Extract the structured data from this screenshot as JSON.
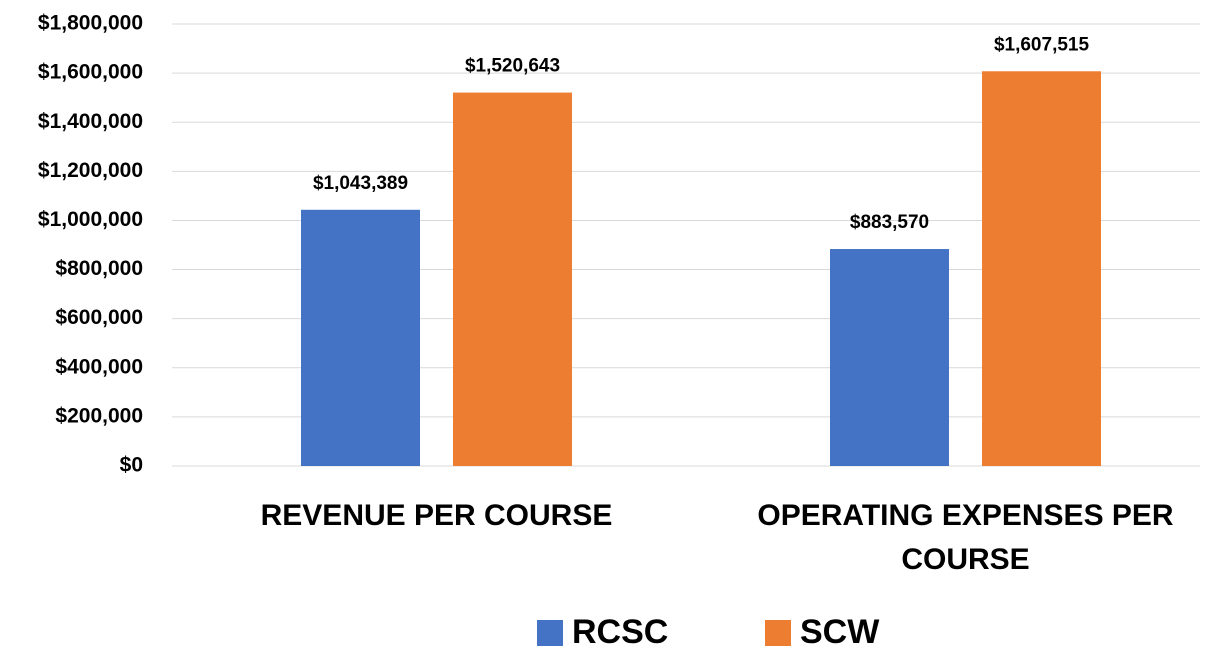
{
  "chart_data": {
    "type": "bar",
    "categories": [
      "REVENUE PER COURSE",
      "OPERATING EXPENSES PER COURSE"
    ],
    "series": [
      {
        "name": "RCSC",
        "color": "#4472c4",
        "values": [
          1043389,
          883570
        ],
        "value_labels": [
          "$1,043,389",
          "$883,570"
        ]
      },
      {
        "name": "SCW",
        "color": "#ed7d31",
        "values": [
          1520643,
          1607515
        ],
        "value_labels": [
          "$1,520,643",
          "$1,607,515"
        ]
      }
    ],
    "ylim": [
      0,
      1800000
    ],
    "yticks": [
      {
        "value": 0,
        "label": "$0"
      },
      {
        "value": 200000,
        "label": "$200,000"
      },
      {
        "value": 400000,
        "label": "$400,000"
      },
      {
        "value": 600000,
        "label": "$600,000"
      },
      {
        "value": 800000,
        "label": "$800,000"
      },
      {
        "value": 1000000,
        "label": "$1,000,000"
      },
      {
        "value": 1200000,
        "label": "$1,200,000"
      },
      {
        "value": 1400000,
        "label": "$1,400,000"
      },
      {
        "value": 1600000,
        "label": "$1,600,000"
      },
      {
        "value": 1800000,
        "label": "$1,800,000"
      }
    ],
    "grid": true,
    "legend": "bottom"
  }
}
